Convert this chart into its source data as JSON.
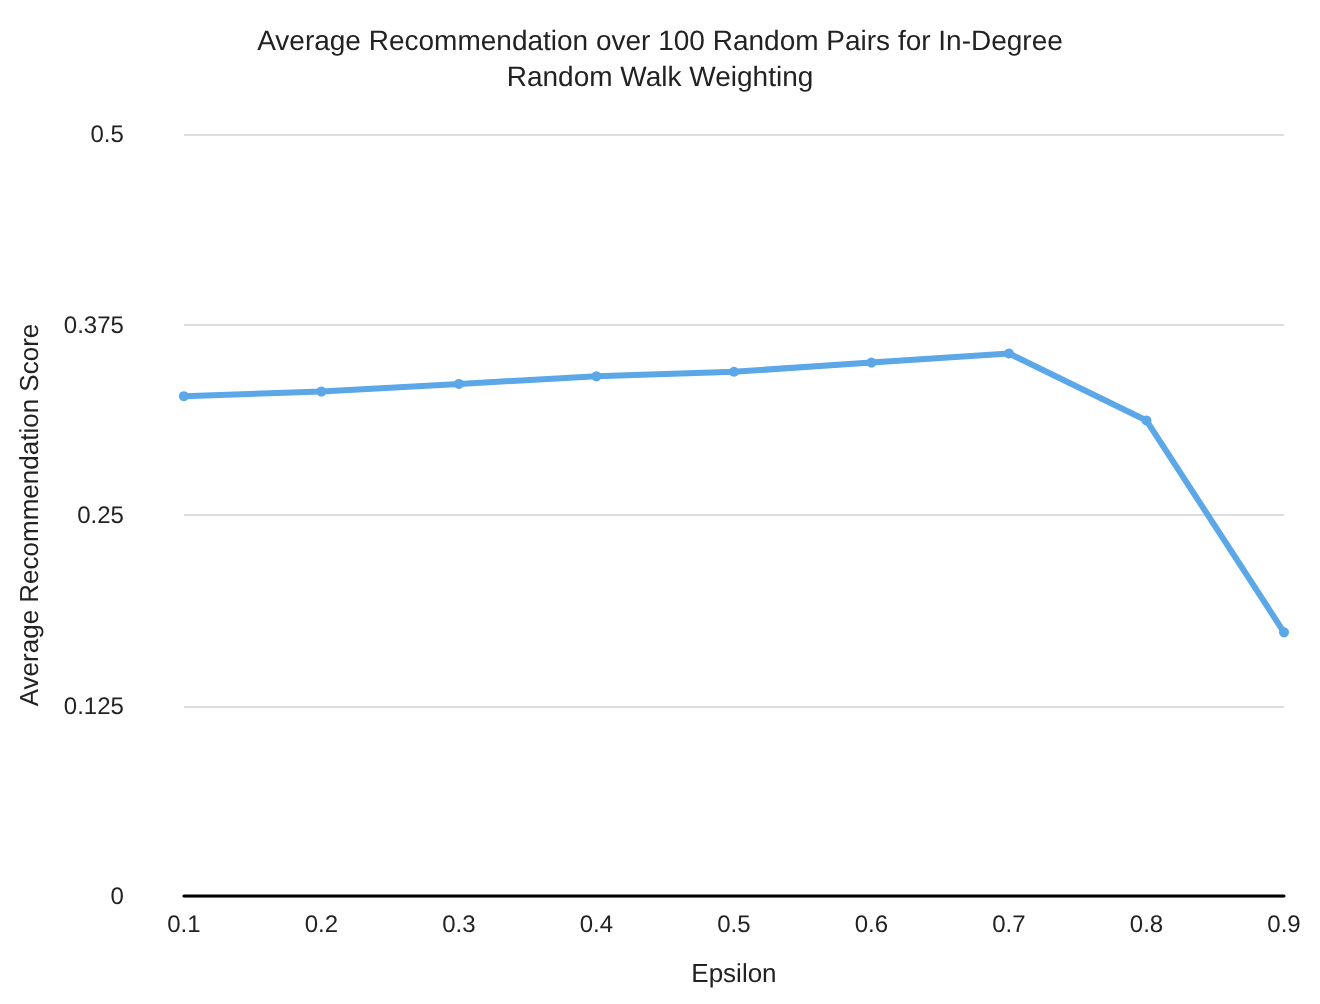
{
  "chart_data": {
    "type": "line",
    "title": "Average Recommendation over 100 Random Pairs for In-Degree\nRandom Walk Weighting",
    "xlabel": "Epsilon",
    "ylabel": "Average Recommendation Score",
    "x": [
      0.1,
      0.2,
      0.3,
      0.4,
      0.5,
      0.6,
      0.7,
      0.8,
      0.9
    ],
    "series": [
      {
        "color": "#5ba7e8",
        "values": [
          0.328,
          0.331,
          0.336,
          0.341,
          0.344,
          0.35,
          0.356,
          0.312,
          0.173
        ]
      }
    ],
    "xlim": [
      0.1,
      0.9
    ],
    "xticks": [
      0.1,
      0.2,
      0.3,
      0.4,
      0.5,
      0.6,
      0.7,
      0.8,
      0.9
    ],
    "ylim": [
      0,
      0.5
    ],
    "yticks": [
      0,
      0.125,
      0.25,
      0.375,
      0.5
    ],
    "grid": "y",
    "marker": "circle",
    "line_style": "solid"
  }
}
